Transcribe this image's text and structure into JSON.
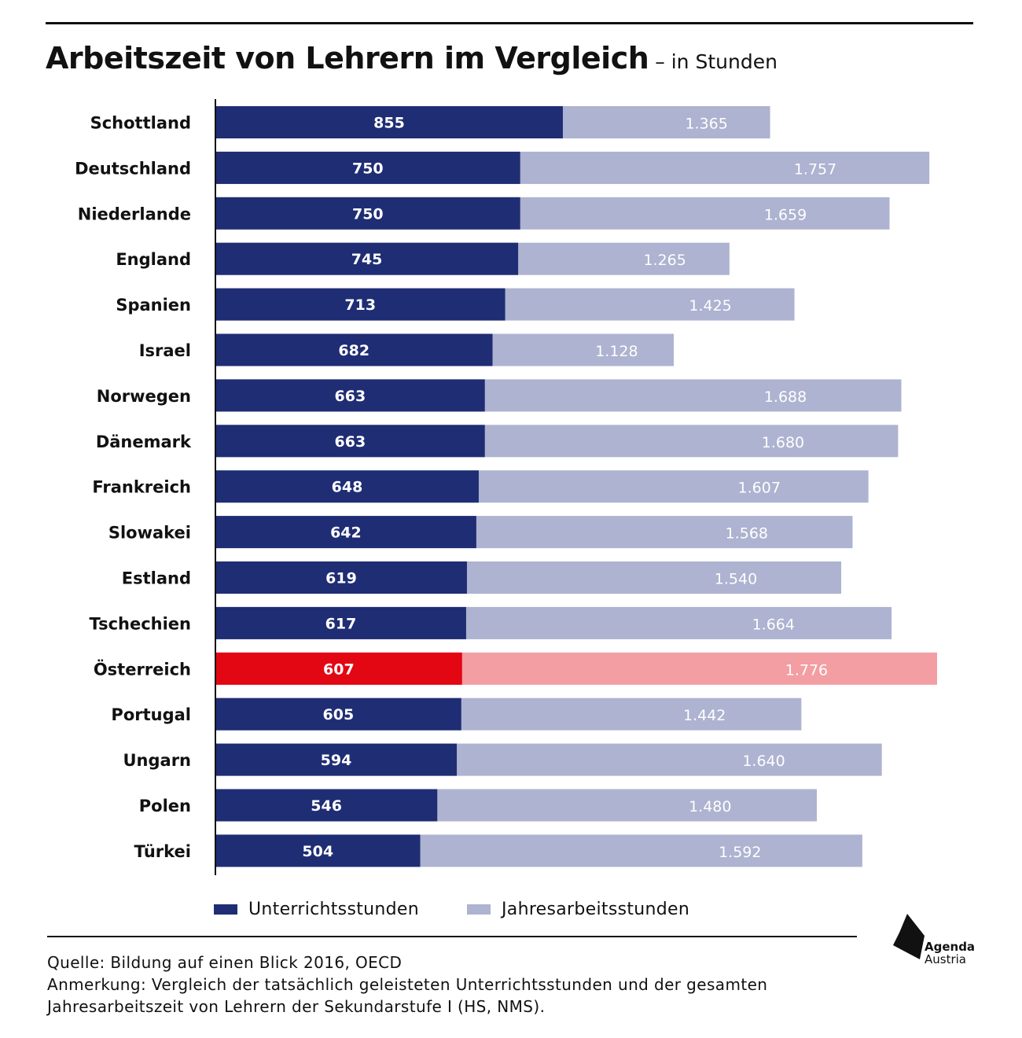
{
  "title": "Arbeitszeit von Lehrern im Vergleich",
  "subtitle": "– in Stunden",
  "colors": {
    "teaching": "#1f2d74",
    "annual": "#adb3d0",
    "highlight_teaching": "#e30613",
    "highlight_annual": "#f29ea3",
    "text_on_bar": "#ffffff"
  },
  "legend": {
    "teaching_label": "Unterrichtsstunden",
    "annual_label": "Jahresarbeitsstunden"
  },
  "source": "Quelle: Bildung auf einen Blick 2016, OECD",
  "note_line1": "Anmerkung: Vergleich der tatsächlich geleisteten Unterrichtsstunden und der gesamten",
  "note_line2": "Jahresarbeitszeit von Lehrern der Sekundarstufe I (HS, NMS).",
  "logo": {
    "line1": "Agenda",
    "line2": "Austria"
  },
  "chart_data": {
    "type": "bar",
    "orientation": "horizontal",
    "categories": [
      "Schottland",
      "Deutschland",
      "Niederlande",
      "England",
      "Spanien",
      "Israel",
      "Norwegen",
      "Dänemark",
      "Frankreich",
      "Slowakei",
      "Estland",
      "Tschechien",
      "Österreich",
      "Portugal",
      "Ungarn",
      "Polen",
      "Türkei"
    ],
    "series": [
      {
        "name": "Unterrichtsstunden",
        "values": [
          855,
          750,
          750,
          745,
          713,
          682,
          663,
          663,
          648,
          642,
          619,
          617,
          607,
          605,
          594,
          546,
          504
        ],
        "labels": [
          "855",
          "750",
          "750",
          "745",
          "713",
          "682",
          "663",
          "663",
          "648",
          "642",
          "619",
          "617",
          "607",
          "605",
          "594",
          "546",
          "504"
        ]
      },
      {
        "name": "Jahresarbeitsstunden",
        "values": [
          1365,
          1757,
          1659,
          1265,
          1425,
          1128,
          1688,
          1680,
          1607,
          1568,
          1540,
          1664,
          1776,
          1442,
          1640,
          1480,
          1592
        ],
        "labels": [
          "1.365",
          "1.757",
          "1.659",
          "1.265",
          "1.425",
          "1.128",
          "1.688",
          "1.680",
          "1.607",
          "1.568",
          "1.540",
          "1.664",
          "1.776",
          "1.442",
          "1.640",
          "1.480",
          "1.592"
        ]
      }
    ],
    "highlight_category": "Österreich",
    "xlim": [
      0,
      1776
    ],
    "grid": false,
    "legend_position": "bottom"
  }
}
